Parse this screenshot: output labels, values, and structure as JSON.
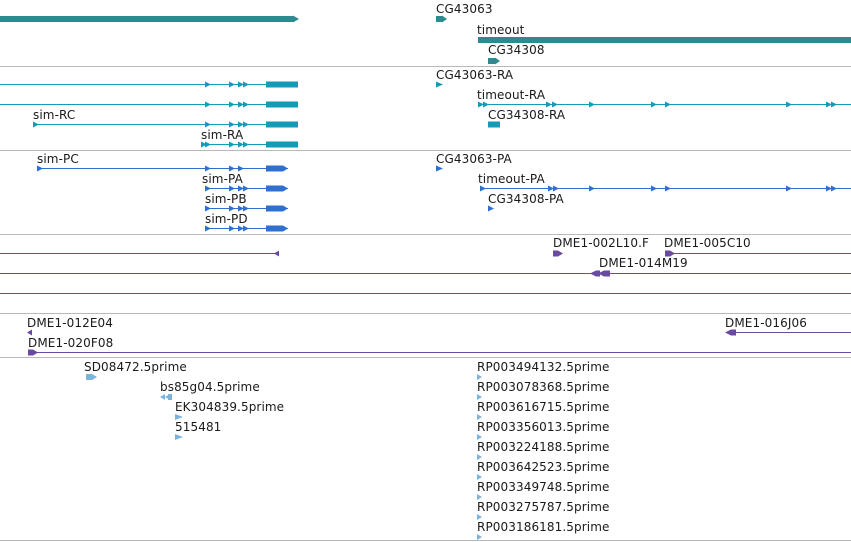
{
  "colors": {
    "gene": "#2e8a8f",
    "mrna": "#139bb8",
    "protein": "#2f6fd0",
    "clone": "#6a4aa0",
    "est": "#7ab3dc",
    "separator": "#b9b9b9",
    "text": "#1a1a1a"
  },
  "tracks": {
    "genes": {
      "labels": [
        "CG43063",
        "timeout",
        "CG34308"
      ]
    },
    "transcripts": {
      "labels": [
        "CG43063-RA",
        "timeout-RA",
        "sim-RC",
        "CG34308-RA",
        "sim-RA"
      ]
    },
    "proteins": {
      "labels": [
        "CG43063-PA",
        "sim-PC",
        "timeout-PA",
        "sim-PA",
        "CG34308-PA",
        "sim-PB",
        "sim-PD"
      ]
    },
    "clones_upper": {
      "labels": [
        "DME1-002L10.F",
        "DME1-005C10",
        "DME1-014M19"
      ]
    },
    "clones_lower": {
      "labels": [
        "DME1-012E04",
        "DME1-016J06",
        "DME1-020F08"
      ]
    },
    "ests": {
      "labels": [
        "SD08472.5prime",
        "bs85g04.5prime",
        "EK304839.5prime",
        "515481",
        "RP003494132.5prime",
        "RP003078368.5prime",
        "RP003616715.5prime",
        "RP003356013.5prime",
        "RP003224188.5prime",
        "RP003642523.5prime",
        "RP003349748.5prime",
        "RP003275787.5prime",
        "RP003186181.5prime"
      ]
    }
  }
}
